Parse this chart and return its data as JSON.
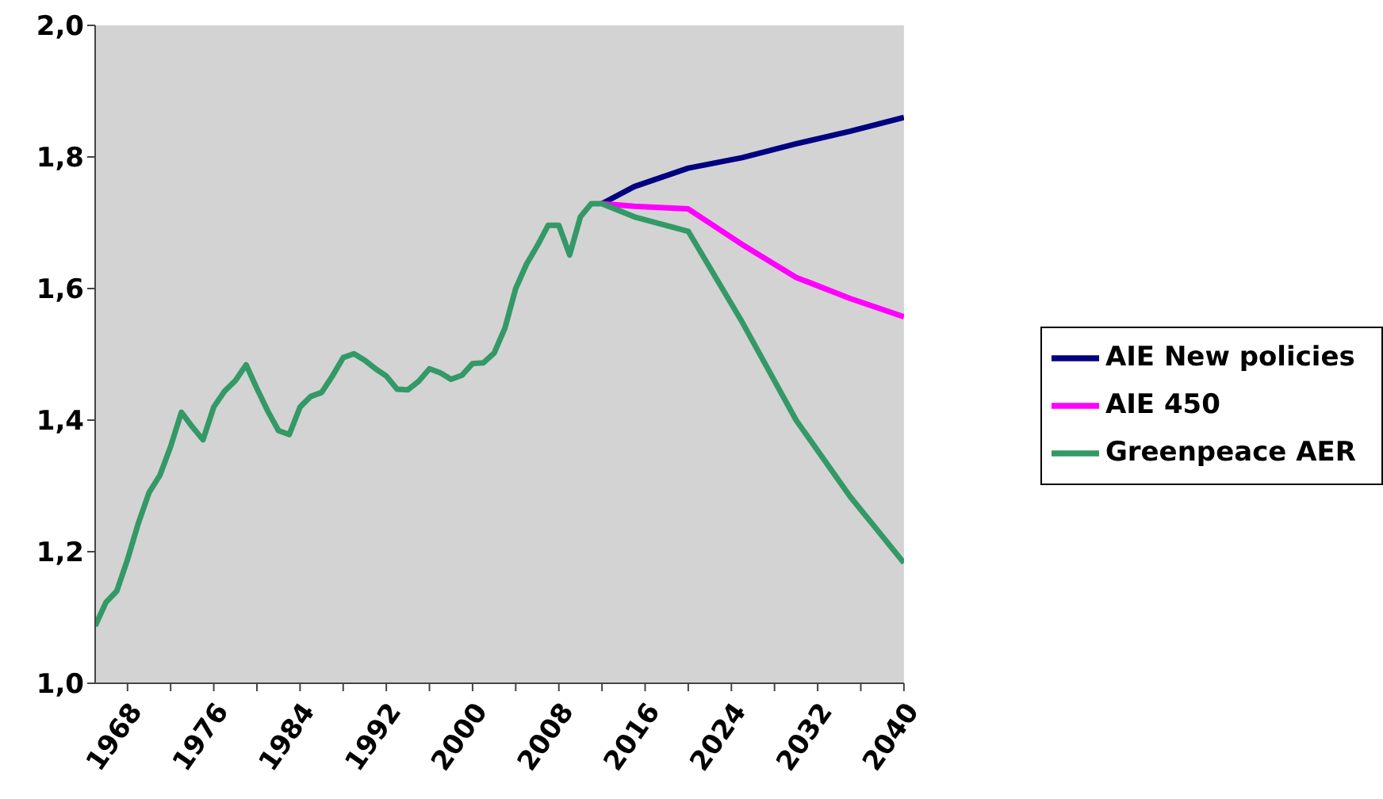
{
  "chart_data": {
    "type": "line",
    "xlim": [
      1965,
      2040
    ],
    "ylim": [
      1.0,
      2.0
    ],
    "xticks": [
      1968,
      {
        "value": 1972,
        "label": null
      },
      1976,
      {
        "value": 1980,
        "label": null
      },
      1984,
      {
        "value": 1988,
        "label": null
      },
      1992,
      {
        "value": 1996,
        "label": null
      },
      2000,
      {
        "value": 2004,
        "label": null
      },
      2008,
      {
        "value": 2012,
        "label": null
      },
      2016,
      {
        "value": 2020,
        "label": null
      },
      2024,
      {
        "value": 2028,
        "label": null
      },
      2032,
      {
        "value": 2036,
        "label": null
      },
      2040
    ],
    "yticks": [
      {
        "value": 1.0,
        "label": "1,0"
      },
      {
        "value": 1.2,
        "label": "1,2"
      },
      {
        "value": 1.4,
        "label": "1,4"
      },
      {
        "value": 1.6,
        "label": "1,6"
      },
      {
        "value": 1.8,
        "label": "1,8"
      },
      {
        "value": 2.0,
        "label": "2,0"
      }
    ],
    "legend": "right",
    "marker": "none",
    "line_style": "solid",
    "series": [
      {
        "name": "AIE New policies",
        "color": "#000080",
        "x": [
          2012,
          2015,
          2020,
          2025,
          2030,
          2035,
          2040
        ],
        "values": [
          1.729,
          1.755,
          1.783,
          1.799,
          1.82,
          1.839,
          1.86
        ]
      },
      {
        "name": "AIE 450",
        "color": "#ff00ff",
        "x": [
          2012,
          2015,
          2020,
          2025,
          2030,
          2035,
          2040
        ],
        "values": [
          1.729,
          1.725,
          1.721,
          1.667,
          1.617,
          1.585,
          1.557
        ]
      },
      {
        "name": "Greenpeace AER",
        "color": "#339966",
        "x": [
          1965,
          1966,
          1967,
          1968,
          1969,
          1970,
          1971,
          1972,
          1973,
          1974,
          1975,
          1976,
          1977,
          1978,
          1979,
          1980,
          1981,
          1982,
          1983,
          1984,
          1985,
          1986,
          1987,
          1988,
          1989,
          1990,
          1991,
          1992,
          1993,
          1994,
          1995,
          1996,
          1997,
          1998,
          1999,
          2000,
          2001,
          2002,
          2003,
          2004,
          2005,
          2006,
          2007,
          2008,
          2009,
          2010,
          2011,
          2012,
          2015,
          2020,
          2025,
          2030,
          2035,
          2040
        ],
        "values": [
          1.087,
          1.123,
          1.14,
          1.188,
          1.243,
          1.29,
          1.316,
          1.36,
          1.412,
          1.39,
          1.37,
          1.42,
          1.444,
          1.46,
          1.484,
          1.448,
          1.414,
          1.384,
          1.378,
          1.42,
          1.436,
          1.442,
          1.467,
          1.495,
          1.501,
          1.491,
          1.478,
          1.467,
          1.447,
          1.446,
          1.459,
          1.478,
          1.472,
          1.462,
          1.468,
          1.486,
          1.487,
          1.502,
          1.54,
          1.6,
          1.637,
          1.665,
          1.696,
          1.696,
          1.651,
          1.709,
          1.729,
          1.729,
          1.709,
          1.687,
          1.549,
          1.4,
          1.284,
          1.183
        ]
      }
    ]
  }
}
